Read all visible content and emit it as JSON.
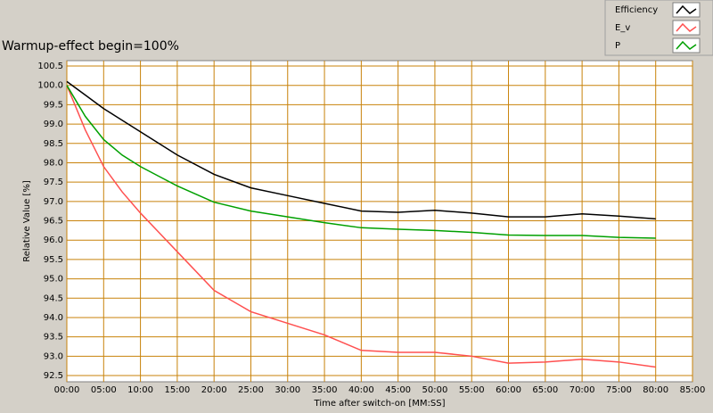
{
  "chart_data": {
    "type": "line",
    "title": "Warmup-effect begin=100%",
    "x_label": "Time after switch-on [MM:SS]",
    "y_label": "Relative Value [%]",
    "x": [
      0,
      2.5,
      5,
      7.5,
      10,
      12.5,
      15,
      20,
      25,
      30,
      35,
      40,
      45,
      50,
      55,
      60,
      65,
      70,
      75,
      80
    ],
    "series": [
      {
        "name": "Efficiency",
        "color": "#000000",
        "values": [
          100.1,
          99.75,
          99.4,
          99.1,
          98.8,
          98.5,
          98.2,
          97.7,
          97.35,
          97.15,
          96.95,
          96.75,
          96.72,
          96.77,
          96.7,
          96.6,
          96.6,
          96.68,
          96.62,
          96.55
        ]
      },
      {
        "name": "E_v",
        "color": "#ff5050",
        "values": [
          100.0,
          98.85,
          97.9,
          97.25,
          96.7,
          96.2,
          95.7,
          94.7,
          94.15,
          93.85,
          93.55,
          93.15,
          93.1,
          93.1,
          93.0,
          92.82,
          92.85,
          92.92,
          92.85,
          92.72
        ]
      },
      {
        "name": "P",
        "color": "#00a000",
        "values": [
          100.0,
          99.2,
          98.6,
          98.2,
          97.9,
          97.65,
          97.4,
          96.98,
          96.75,
          96.6,
          96.45,
          96.32,
          96.28,
          96.25,
          96.2,
          96.13,
          96.12,
          96.12,
          96.07,
          96.05
        ]
      }
    ],
    "xlim": [
      0,
      85
    ],
    "xticks": [
      {
        "value": 0,
        "label": "00:00"
      },
      {
        "value": 5,
        "label": "05:00"
      },
      {
        "value": 10,
        "label": "10:00"
      },
      {
        "value": 15,
        "label": "15:00"
      },
      {
        "value": 20,
        "label": "20:00"
      },
      {
        "value": 25,
        "label": "25:00"
      },
      {
        "value": 30,
        "label": "30:00"
      },
      {
        "value": 35,
        "label": "35:00"
      },
      {
        "value": 40,
        "label": "40:00"
      },
      {
        "value": 45,
        "label": "45:00"
      },
      {
        "value": 50,
        "label": "50:00"
      },
      {
        "value": 55,
        "label": "55:00"
      },
      {
        "value": 60,
        "label": "60:00"
      },
      {
        "value": 65,
        "label": "65:00"
      },
      {
        "value": 70,
        "label": "70:00"
      },
      {
        "value": 75,
        "label": "75:00"
      },
      {
        "value": 80,
        "label": "80:00"
      },
      {
        "value": 85,
        "label": "85:00"
      }
    ],
    "ylim": [
      92.5,
      100.5
    ],
    "yticks": [
      92.5,
      {
        "value": 93,
        "label": "93.0"
      },
      93.5,
      {
        "value": 94,
        "label": "94.0"
      },
      94.5,
      {
        "value": 95,
        "label": "95.0"
      },
      95.5,
      {
        "value": 96,
        "label": "96.0"
      },
      96.5,
      {
        "value": 97,
        "label": "97.0"
      },
      97.5,
      {
        "value": 98,
        "label": "98.0"
      },
      98.5,
      {
        "value": 99,
        "label": "99.0"
      },
      99.5,
      {
        "value": 100,
        "label": "100.0"
      },
      100.5
    ],
    "grid": true,
    "grid_color": "#c8820a",
    "legend": "top-right"
  }
}
